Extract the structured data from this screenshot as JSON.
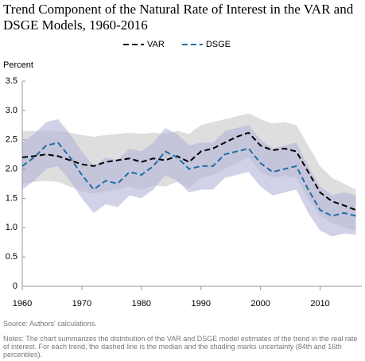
{
  "chart_data": {
    "type": "line",
    "title": "Trend Component of the Natural Rate of Interest in the VAR and DSGE Models, 1960-2016",
    "ylabel": "Percent",
    "source": "Source: Authors' calculations.",
    "notes": "Notes: The chart summarizes the distribution of the VAR and DSGE model estimates of the trend in the real rate of interest. For each trend, the dashed line is the median and the shading marks uncertainty (84th and 16th percentiles).",
    "legend": "top",
    "x": [
      1960,
      1962,
      1964,
      1966,
      1968,
      1970,
      1972,
      1974,
      1976,
      1978,
      1980,
      1982,
      1984,
      1986,
      1988,
      1990,
      1992,
      1994,
      1996,
      1998,
      2000,
      2002,
      2004,
      2006,
      2008,
      2010,
      2012,
      2014,
      2016
    ],
    "xlim": [
      1960,
      2017
    ],
    "xticks": [
      1960,
      1970,
      1980,
      1990,
      2000,
      2010
    ],
    "ylim": [
      0,
      3.5
    ],
    "yticks": [
      0,
      0.5,
      {
        "value": 1,
        "label": "1.0"
      },
      1.5,
      {
        "value": 2,
        "label": "2.0"
      },
      2.5,
      {
        "value": 3,
        "label": "3.0"
      },
      3.5
    ],
    "series": [
      {
        "name": "VAR",
        "color": "#000000",
        "band_color": "#c8c8c8",
        "values": [
          2.2,
          2.22,
          2.25,
          2.22,
          2.15,
          2.08,
          2.05,
          2.12,
          2.15,
          2.18,
          2.12,
          2.18,
          2.15,
          2.22,
          2.12,
          2.3,
          2.35,
          2.45,
          2.55,
          2.62,
          2.4,
          2.32,
          2.35,
          2.3,
          1.95,
          1.6,
          1.45,
          1.38,
          1.3
        ],
        "upper": [
          2.65,
          2.65,
          2.65,
          2.65,
          2.62,
          2.58,
          2.55,
          2.58,
          2.6,
          2.62,
          2.6,
          2.62,
          2.6,
          2.65,
          2.6,
          2.75,
          2.8,
          2.85,
          2.9,
          2.95,
          2.85,
          2.78,
          2.8,
          2.75,
          2.4,
          2.05,
          1.85,
          1.75,
          1.65
        ],
        "lower": [
          1.75,
          1.78,
          1.8,
          1.78,
          1.7,
          1.62,
          1.58,
          1.62,
          1.65,
          1.7,
          1.65,
          1.72,
          1.7,
          1.78,
          1.68,
          1.85,
          1.9,
          2.0,
          2.1,
          2.2,
          1.95,
          1.85,
          1.88,
          1.85,
          1.5,
          1.2,
          1.08,
          1.0,
          0.95
        ]
      },
      {
        "name": "DSGE",
        "color": "#1f6fa3",
        "band_color": "#b3b3d9",
        "values": [
          2.05,
          2.2,
          2.4,
          2.45,
          2.2,
          1.9,
          1.65,
          1.8,
          1.75,
          1.95,
          1.9,
          2.05,
          2.3,
          2.2,
          2.0,
          2.05,
          2.05,
          2.25,
          2.3,
          2.35,
          2.1,
          1.95,
          2.0,
          2.05,
          1.65,
          1.3,
          1.2,
          1.25,
          1.2
        ],
        "upper": [
          2.45,
          2.6,
          2.8,
          2.85,
          2.6,
          2.3,
          2.05,
          2.2,
          2.15,
          2.35,
          2.3,
          2.45,
          2.7,
          2.6,
          2.4,
          2.45,
          2.45,
          2.65,
          2.7,
          2.75,
          2.5,
          2.35,
          2.4,
          2.45,
          2.05,
          1.7,
          1.55,
          1.6,
          1.55
        ],
        "lower": [
          1.65,
          1.8,
          2.0,
          2.05,
          1.8,
          1.5,
          1.25,
          1.4,
          1.35,
          1.55,
          1.5,
          1.65,
          1.9,
          1.8,
          1.6,
          1.65,
          1.65,
          1.85,
          1.9,
          1.95,
          1.7,
          1.55,
          1.6,
          1.65,
          1.25,
          0.95,
          0.85,
          0.9,
          0.88
        ]
      }
    ]
  }
}
